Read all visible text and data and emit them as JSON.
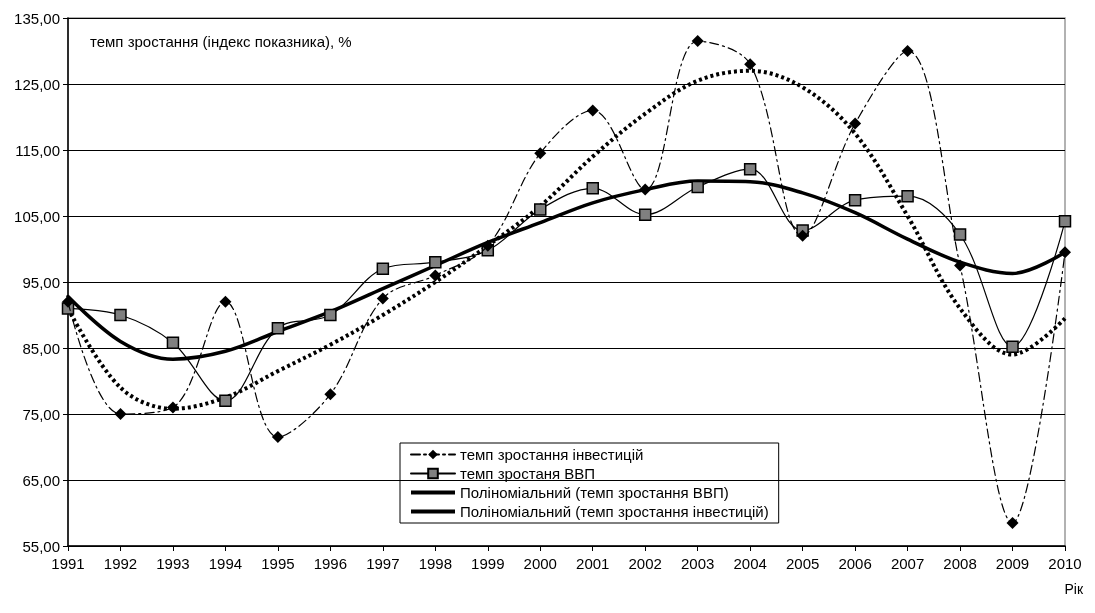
{
  "chart_data": {
    "type": "line",
    "xlabel": "Рік",
    "ylabel": "темп зростання (індекс показника), %",
    "categories": [
      "1991",
      "1992",
      "1993",
      "1994",
      "1995",
      "1996",
      "1997",
      "1998",
      "1999",
      "2000",
      "2001",
      "2002",
      "2003",
      "2004",
      "2005",
      "2006",
      "2007",
      "2008",
      "2009",
      "2010"
    ],
    "series": [
      {
        "name": "темп зростання інвестицій",
        "color": "#000000",
        "marker": "diamond",
        "line_style": "dashed",
        "values": [
          92.0,
          75.0,
          76.0,
          92.0,
          71.5,
          78.0,
          92.5,
          96.0,
          100.5,
          114.5,
          121.0,
          109.0,
          131.5,
          128.0,
          102.0,
          119.0,
          130.0,
          97.5,
          58.5,
          99.5
        ]
      },
      {
        "name": "темп зростаня ВВП",
        "color": "#808080",
        "marker": "square",
        "line_style": "solid",
        "values": [
          91.0,
          90.0,
          85.8,
          77.0,
          88.0,
          90.0,
          97.0,
          98.0,
          99.8,
          106.0,
          109.2,
          105.2,
          109.4,
          112.1,
          102.8,
          107.4,
          108.0,
          102.2,
          85.2,
          104.2
        ]
      },
      {
        "name": "Поліноміальний (темп зростання ВВП)",
        "color": "#000000",
        "marker": "none",
        "line_style": "solid",
        "values": [
          92.8,
          86.0,
          83.3,
          84.5,
          87.5,
          90.5,
          94.0,
          97.5,
          101.0,
          104.0,
          107.0,
          109.0,
          110.3,
          110.2,
          108.5,
          105.5,
          101.5,
          98.0,
          96.3,
          99.5
        ]
      },
      {
        "name": "Поліноміальний (темп зростання інвестицій)",
        "color": "#000000",
        "marker": "none",
        "line_style": "dotted",
        "values": [
          91.0,
          79.0,
          75.8,
          77.5,
          81.5,
          85.5,
          90.0,
          95.0,
          100.5,
          106.5,
          114.0,
          120.5,
          125.5,
          127.0,
          124.5,
          117.5,
          105.0,
          91.0,
          84.0,
          89.5
        ]
      }
    ],
    "ylim": [
      55,
      135
    ],
    "yticks": [
      {
        "value": 55,
        "label": "55,00"
      },
      {
        "value": 65,
        "label": "65,00"
      },
      {
        "value": 75,
        "label": "75,00"
      },
      {
        "value": 85,
        "label": "85,00"
      },
      {
        "value": 95,
        "label": "95,00"
      },
      {
        "value": 105,
        "label": "105,00"
      },
      {
        "value": 115,
        "label": "115,00"
      },
      {
        "value": 125,
        "label": "125,00"
      },
      {
        "value": 135,
        "label": "135,00"
      }
    ],
    "grid": "y",
    "legend": "bottom"
  }
}
